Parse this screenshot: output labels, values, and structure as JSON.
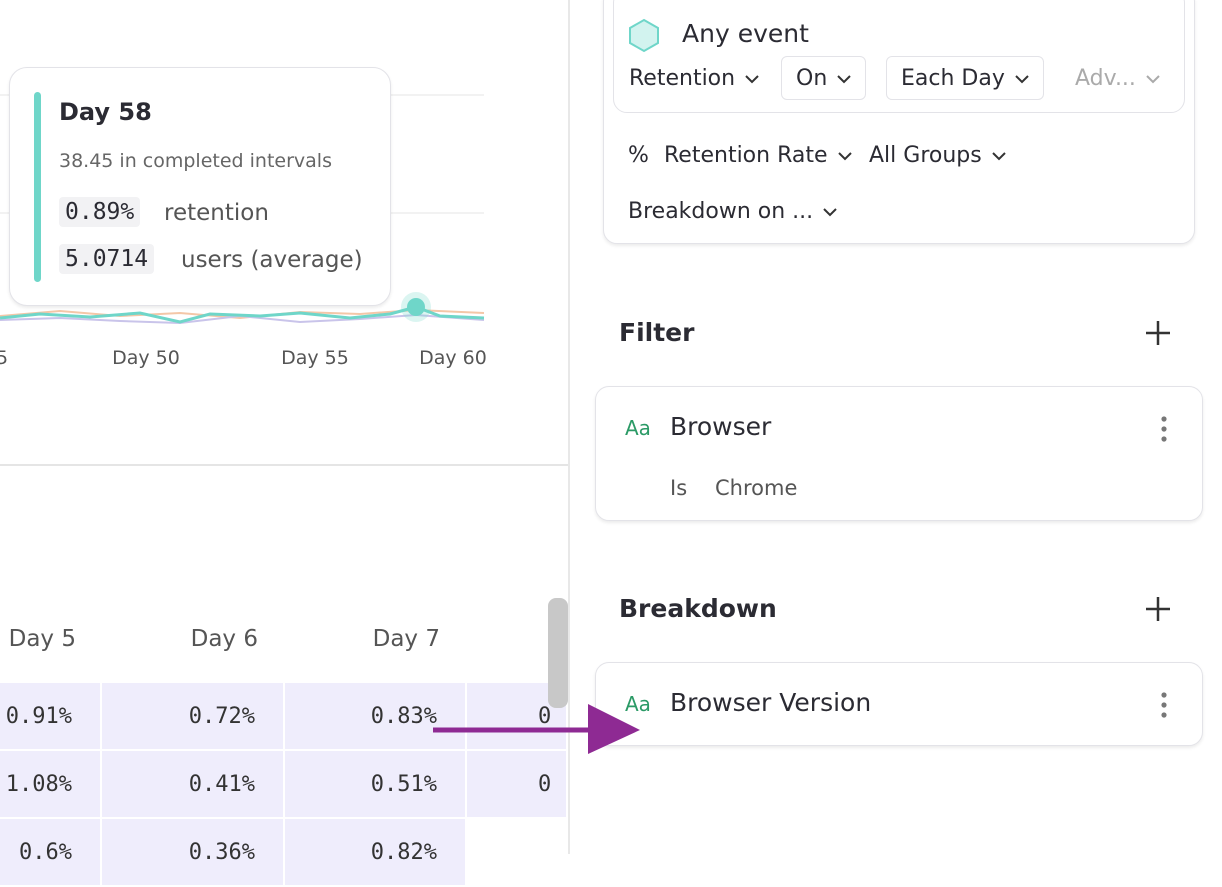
{
  "chart": {
    "x_tick_labels": [
      "5",
      "Day 50",
      "Day 55",
      "Day 60"
    ],
    "tooltip": {
      "title": "Day 58",
      "subtitle": "38.45 in completed intervals",
      "rows": [
        {
          "value": "0.89%",
          "label": "retention"
        },
        {
          "value": "5.0714",
          "label": "users (average)"
        }
      ]
    }
  },
  "table": {
    "header": [
      "Day 5",
      "Day 6",
      "Day 7"
    ],
    "rows": [
      [
        "0.91%",
        "0.72%",
        "0.83%",
        "0"
      ],
      [
        "1.08%",
        "0.41%",
        "0.51%",
        "0"
      ],
      [
        "0.6%",
        "0.36%",
        "0.82%"
      ]
    ]
  },
  "query": {
    "event": "Any event",
    "controls": [
      "Retention",
      "On",
      "Each Day",
      "Adv..."
    ],
    "measure_symbol": "%",
    "measure": "Retention Rate",
    "groups": "All Groups",
    "breakdown_on": "Breakdown on ..."
  },
  "filter": {
    "title": "Filter",
    "items": [
      {
        "type_icon": "Aa",
        "property": "Browser",
        "operator": "Is",
        "value": "Chrome"
      }
    ]
  },
  "breakdown": {
    "title": "Breakdown",
    "items": [
      {
        "type_icon": "Aa",
        "property": "Browser Version"
      }
    ]
  }
}
